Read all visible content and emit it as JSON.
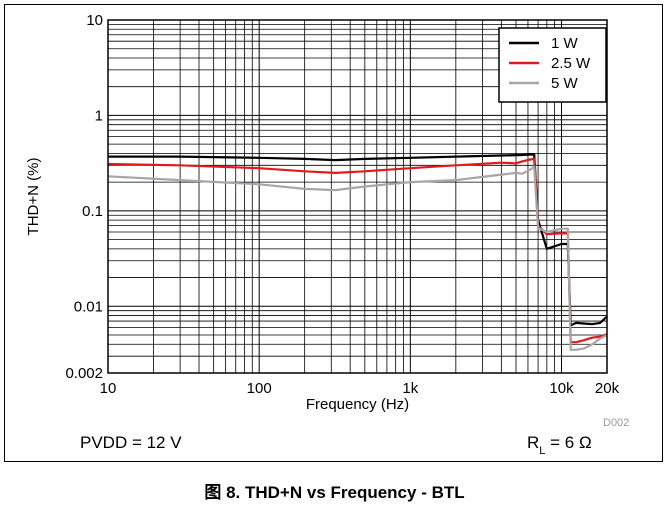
{
  "chart_data": {
    "type": "line",
    "x_scale": "log",
    "y_scale": "log",
    "xlabel": "Frequency (Hz)",
    "ylabel": "THD+N (%)",
    "xlim": [
      10,
      20000
    ],
    "ylim": [
      0.002,
      10
    ],
    "x_ticks": [
      {
        "value": 10,
        "label": "10"
      },
      {
        "value": 100,
        "label": "100"
      },
      {
        "value": 1000,
        "label": "1k"
      },
      {
        "value": 10000,
        "label": "10k"
      },
      {
        "value": 20000,
        "label": "20k"
      }
    ],
    "y_ticks": [
      {
        "value": 10,
        "label": "10"
      },
      {
        "value": 1,
        "label": "1"
      },
      {
        "value": 0.1,
        "label": "0.1"
      },
      {
        "value": 0.01,
        "label": "0.01"
      },
      {
        "value": 0.002,
        "label": "0.002"
      }
    ],
    "grid": true,
    "legend_position": "top-right",
    "series": [
      {
        "name": "1 W",
        "color": "#000000",
        "x": [
          10,
          30,
          100,
          200,
          320,
          500,
          1000,
          2000,
          4000,
          5500,
          6200,
          6600,
          7000,
          8000,
          10000,
          11000,
          11500,
          12500,
          14000,
          16000,
          18000,
          20000
        ],
        "y": [
          0.37,
          0.37,
          0.36,
          0.35,
          0.34,
          0.35,
          0.36,
          0.37,
          0.38,
          0.385,
          0.39,
          0.39,
          0.08,
          0.04,
          0.045,
          0.045,
          0.0063,
          0.0067,
          0.0066,
          0.0065,
          0.0067,
          0.0078
        ]
      },
      {
        "name": "2.5 W",
        "color": "#e31a1c",
        "x": [
          10,
          30,
          100,
          200,
          320,
          500,
          1000,
          2000,
          4000,
          5000,
          5500,
          6200,
          6600,
          7000,
          8000,
          10000,
          11000,
          11500,
          12500,
          14000,
          16000,
          18000,
          20000
        ],
        "y": [
          0.31,
          0.3,
          0.28,
          0.26,
          0.25,
          0.26,
          0.28,
          0.3,
          0.32,
          0.315,
          0.33,
          0.345,
          0.35,
          0.07,
          0.057,
          0.058,
          0.058,
          0.0042,
          0.0042,
          0.0044,
          0.0047,
          0.0048,
          0.0051
        ]
      },
      {
        "name": "5 W",
        "color": "#a6a6a6",
        "x": [
          10,
          30,
          100,
          200,
          320,
          500,
          1000,
          2000,
          4000,
          5000,
          5500,
          6200,
          6600,
          7000,
          8000,
          10000,
          11000,
          11500,
          12500,
          14000,
          16000,
          18000,
          20000
        ],
        "y": [
          0.23,
          0.21,
          0.19,
          0.17,
          0.165,
          0.18,
          0.2,
          0.21,
          0.24,
          0.25,
          0.245,
          0.27,
          0.29,
          0.066,
          0.06,
          0.065,
          0.065,
          0.0035,
          0.0035,
          0.0036,
          0.004,
          0.0046,
          0.005
        ]
      }
    ]
  },
  "conditions": {
    "left": "PVDD = 12 V",
    "right_main": "R",
    "right_sub": "L",
    "right_rest": " = 6 Ω"
  },
  "doc_id": "D002",
  "caption": {
    "prefix": "图",
    "text": " 8. THD+N vs Frequency - BTL"
  }
}
